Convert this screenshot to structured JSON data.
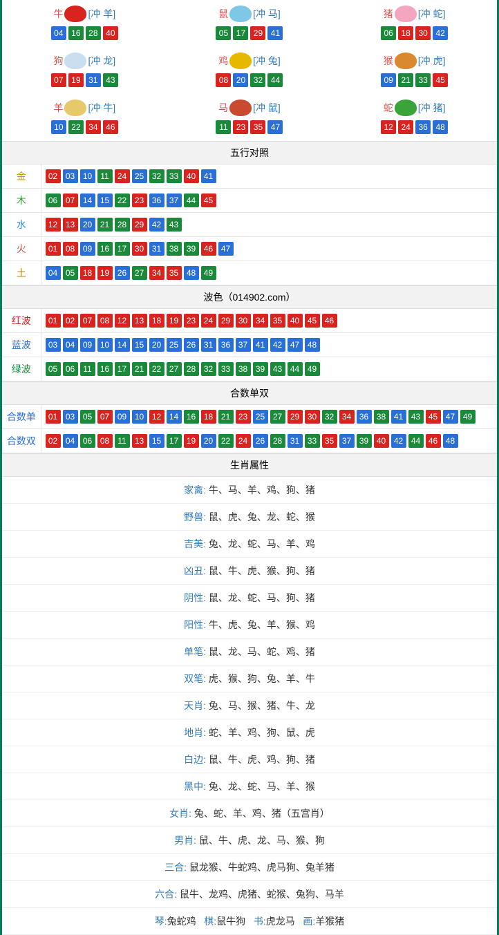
{
  "colors": {
    "red": "#d9231f",
    "blue": "#2a6fd6",
    "green": "#1a8a3a",
    "border": "#0a7a5a",
    "header_bg": "#f2f2f2"
  },
  "zodiac_grid": [
    {
      "name": "牛",
      "conflict": "[冲 羊]",
      "icon_color": "#d9231f",
      "balls": [
        {
          "n": "04",
          "c": "b"
        },
        {
          "n": "16",
          "c": "g"
        },
        {
          "n": "28",
          "c": "g"
        },
        {
          "n": "40",
          "c": "r"
        }
      ]
    },
    {
      "name": "鼠",
      "conflict": "[冲 马]",
      "icon_color": "#7fc7e6",
      "balls": [
        {
          "n": "05",
          "c": "g"
        },
        {
          "n": "17",
          "c": "g"
        },
        {
          "n": "29",
          "c": "r"
        },
        {
          "n": "41",
          "c": "b"
        }
      ]
    },
    {
      "name": "猪",
      "conflict": "[冲 蛇]",
      "icon_color": "#f4a6c0",
      "balls": [
        {
          "n": "06",
          "c": "g"
        },
        {
          "n": "18",
          "c": "r"
        },
        {
          "n": "30",
          "c": "r"
        },
        {
          "n": "42",
          "c": "b"
        }
      ]
    },
    {
      "name": "狗",
      "conflict": "[冲 龙]",
      "icon_color": "#c9dff0",
      "balls": [
        {
          "n": "07",
          "c": "r"
        },
        {
          "n": "19",
          "c": "r"
        },
        {
          "n": "31",
          "c": "b"
        },
        {
          "n": "43",
          "c": "g"
        }
      ]
    },
    {
      "name": "鸡",
      "conflict": "[冲 兔]",
      "icon_color": "#e6b800",
      "balls": [
        {
          "n": "08",
          "c": "r"
        },
        {
          "n": "20",
          "c": "b"
        },
        {
          "n": "32",
          "c": "g"
        },
        {
          "n": "44",
          "c": "g"
        }
      ]
    },
    {
      "name": "猴",
      "conflict": "[冲 虎]",
      "icon_color": "#d98a2e",
      "balls": [
        {
          "n": "09",
          "c": "b"
        },
        {
          "n": "21",
          "c": "g"
        },
        {
          "n": "33",
          "c": "g"
        },
        {
          "n": "45",
          "c": "r"
        }
      ]
    },
    {
      "name": "羊",
      "conflict": "[冲 牛]",
      "icon_color": "#e6c96b",
      "balls": [
        {
          "n": "10",
          "c": "b"
        },
        {
          "n": "22",
          "c": "g"
        },
        {
          "n": "34",
          "c": "r"
        },
        {
          "n": "46",
          "c": "r"
        }
      ]
    },
    {
      "name": "马",
      "conflict": "[冲 鼠]",
      "icon_color": "#c94a2e",
      "balls": [
        {
          "n": "11",
          "c": "g"
        },
        {
          "n": "23",
          "c": "r"
        },
        {
          "n": "35",
          "c": "r"
        },
        {
          "n": "47",
          "c": "b"
        }
      ]
    },
    {
      "name": "蛇",
      "conflict": "[冲 猪]",
      "icon_color": "#3aa33a",
      "balls": [
        {
          "n": "12",
          "c": "r"
        },
        {
          "n": "24",
          "c": "r"
        },
        {
          "n": "36",
          "c": "b"
        },
        {
          "n": "48",
          "c": "b"
        }
      ]
    }
  ],
  "wuxing": {
    "title": "五行对照",
    "rows": [
      {
        "label": "金",
        "cls": "c-gold",
        "balls": [
          {
            "n": "02",
            "c": "r"
          },
          {
            "n": "03",
            "c": "b"
          },
          {
            "n": "10",
            "c": "b"
          },
          {
            "n": "11",
            "c": "g"
          },
          {
            "n": "24",
            "c": "r"
          },
          {
            "n": "25",
            "c": "b"
          },
          {
            "n": "32",
            "c": "g"
          },
          {
            "n": "33",
            "c": "g"
          },
          {
            "n": "40",
            "c": "r"
          },
          {
            "n": "41",
            "c": "b"
          }
        ]
      },
      {
        "label": "木",
        "cls": "c-wood",
        "balls": [
          {
            "n": "06",
            "c": "g"
          },
          {
            "n": "07",
            "c": "r"
          },
          {
            "n": "14",
            "c": "b"
          },
          {
            "n": "15",
            "c": "b"
          },
          {
            "n": "22",
            "c": "g"
          },
          {
            "n": "23",
            "c": "r"
          },
          {
            "n": "36",
            "c": "b"
          },
          {
            "n": "37",
            "c": "b"
          },
          {
            "n": "44",
            "c": "g"
          },
          {
            "n": "45",
            "c": "r"
          }
        ]
      },
      {
        "label": "水",
        "cls": "c-water",
        "balls": [
          {
            "n": "12",
            "c": "r"
          },
          {
            "n": "13",
            "c": "r"
          },
          {
            "n": "20",
            "c": "b"
          },
          {
            "n": "21",
            "c": "g"
          },
          {
            "n": "28",
            "c": "g"
          },
          {
            "n": "29",
            "c": "r"
          },
          {
            "n": "42",
            "c": "b"
          },
          {
            "n": "43",
            "c": "g"
          }
        ]
      },
      {
        "label": "火",
        "cls": "c-fire",
        "balls": [
          {
            "n": "01",
            "c": "r"
          },
          {
            "n": "08",
            "c": "r"
          },
          {
            "n": "09",
            "c": "b"
          },
          {
            "n": "16",
            "c": "g"
          },
          {
            "n": "17",
            "c": "g"
          },
          {
            "n": "30",
            "c": "r"
          },
          {
            "n": "31",
            "c": "b"
          },
          {
            "n": "38",
            "c": "g"
          },
          {
            "n": "39",
            "c": "g"
          },
          {
            "n": "46",
            "c": "r"
          },
          {
            "n": "47",
            "c": "b"
          }
        ]
      },
      {
        "label": "土",
        "cls": "c-earth",
        "balls": [
          {
            "n": "04",
            "c": "b"
          },
          {
            "n": "05",
            "c": "g"
          },
          {
            "n": "18",
            "c": "r"
          },
          {
            "n": "19",
            "c": "r"
          },
          {
            "n": "26",
            "c": "b"
          },
          {
            "n": "27",
            "c": "g"
          },
          {
            "n": "34",
            "c": "r"
          },
          {
            "n": "35",
            "c": "r"
          },
          {
            "n": "48",
            "c": "b"
          },
          {
            "n": "49",
            "c": "g"
          }
        ]
      }
    ]
  },
  "bose": {
    "title": "波色（014902.com）",
    "rows": [
      {
        "label": "红波",
        "cls": "c-red",
        "balls": [
          {
            "n": "01",
            "c": "r"
          },
          {
            "n": "02",
            "c": "r"
          },
          {
            "n": "07",
            "c": "r"
          },
          {
            "n": "08",
            "c": "r"
          },
          {
            "n": "12",
            "c": "r"
          },
          {
            "n": "13",
            "c": "r"
          },
          {
            "n": "18",
            "c": "r"
          },
          {
            "n": "19",
            "c": "r"
          },
          {
            "n": "23",
            "c": "r"
          },
          {
            "n": "24",
            "c": "r"
          },
          {
            "n": "29",
            "c": "r"
          },
          {
            "n": "30",
            "c": "r"
          },
          {
            "n": "34",
            "c": "r"
          },
          {
            "n": "35",
            "c": "r"
          },
          {
            "n": "40",
            "c": "r"
          },
          {
            "n": "45",
            "c": "r"
          },
          {
            "n": "46",
            "c": "r"
          }
        ]
      },
      {
        "label": "蓝波",
        "cls": "c-blue",
        "balls": [
          {
            "n": "03",
            "c": "b"
          },
          {
            "n": "04",
            "c": "b"
          },
          {
            "n": "09",
            "c": "b"
          },
          {
            "n": "10",
            "c": "b"
          },
          {
            "n": "14",
            "c": "b"
          },
          {
            "n": "15",
            "c": "b"
          },
          {
            "n": "20",
            "c": "b"
          },
          {
            "n": "25",
            "c": "b"
          },
          {
            "n": "26",
            "c": "b"
          },
          {
            "n": "31",
            "c": "b"
          },
          {
            "n": "36",
            "c": "b"
          },
          {
            "n": "37",
            "c": "b"
          },
          {
            "n": "41",
            "c": "b"
          },
          {
            "n": "42",
            "c": "b"
          },
          {
            "n": "47",
            "c": "b"
          },
          {
            "n": "48",
            "c": "b"
          }
        ]
      },
      {
        "label": "绿波",
        "cls": "c-green",
        "balls": [
          {
            "n": "05",
            "c": "g"
          },
          {
            "n": "06",
            "c": "g"
          },
          {
            "n": "11",
            "c": "g"
          },
          {
            "n": "16",
            "c": "g"
          },
          {
            "n": "17",
            "c": "g"
          },
          {
            "n": "21",
            "c": "g"
          },
          {
            "n": "22",
            "c": "g"
          },
          {
            "n": "27",
            "c": "g"
          },
          {
            "n": "28",
            "c": "g"
          },
          {
            "n": "32",
            "c": "g"
          },
          {
            "n": "33",
            "c": "g"
          },
          {
            "n": "38",
            "c": "g"
          },
          {
            "n": "39",
            "c": "g"
          },
          {
            "n": "43",
            "c": "g"
          },
          {
            "n": "44",
            "c": "g"
          },
          {
            "n": "49",
            "c": "g"
          }
        ]
      }
    ]
  },
  "heshu": {
    "title": "合数单双",
    "rows": [
      {
        "label": "合数单",
        "cls": "c-blue",
        "balls": [
          {
            "n": "01",
            "c": "r"
          },
          {
            "n": "03",
            "c": "b"
          },
          {
            "n": "05",
            "c": "g"
          },
          {
            "n": "07",
            "c": "r"
          },
          {
            "n": "09",
            "c": "b"
          },
          {
            "n": "10",
            "c": "b"
          },
          {
            "n": "12",
            "c": "r"
          },
          {
            "n": "14",
            "c": "b"
          },
          {
            "n": "16",
            "c": "g"
          },
          {
            "n": "18",
            "c": "r"
          },
          {
            "n": "21",
            "c": "g"
          },
          {
            "n": "23",
            "c": "r"
          },
          {
            "n": "25",
            "c": "b"
          },
          {
            "n": "27",
            "c": "g"
          },
          {
            "n": "29",
            "c": "r"
          },
          {
            "n": "30",
            "c": "r"
          },
          {
            "n": "32",
            "c": "g"
          },
          {
            "n": "34",
            "c": "r"
          },
          {
            "n": "36",
            "c": "b"
          },
          {
            "n": "38",
            "c": "g"
          },
          {
            "n": "41",
            "c": "b"
          },
          {
            "n": "43",
            "c": "g"
          },
          {
            "n": "45",
            "c": "r"
          },
          {
            "n": "47",
            "c": "b"
          },
          {
            "n": "49",
            "c": "g"
          }
        ]
      },
      {
        "label": "合数双",
        "cls": "c-blue",
        "balls": [
          {
            "n": "02",
            "c": "r"
          },
          {
            "n": "04",
            "c": "b"
          },
          {
            "n": "06",
            "c": "g"
          },
          {
            "n": "08",
            "c": "r"
          },
          {
            "n": "11",
            "c": "g"
          },
          {
            "n": "13",
            "c": "r"
          },
          {
            "n": "15",
            "c": "b"
          },
          {
            "n": "17",
            "c": "g"
          },
          {
            "n": "19",
            "c": "r"
          },
          {
            "n": "20",
            "c": "b"
          },
          {
            "n": "22",
            "c": "g"
          },
          {
            "n": "24",
            "c": "r"
          },
          {
            "n": "26",
            "c": "b"
          },
          {
            "n": "28",
            "c": "g"
          },
          {
            "n": "31",
            "c": "b"
          },
          {
            "n": "33",
            "c": "g"
          },
          {
            "n": "35",
            "c": "r"
          },
          {
            "n": "37",
            "c": "b"
          },
          {
            "n": "39",
            "c": "g"
          },
          {
            "n": "40",
            "c": "r"
          },
          {
            "n": "42",
            "c": "b"
          },
          {
            "n": "44",
            "c": "g"
          },
          {
            "n": "46",
            "c": "r"
          },
          {
            "n": "48",
            "c": "b"
          }
        ]
      }
    ]
  },
  "attrs": {
    "title": "生肖属性",
    "rows": [
      {
        "label": "家禽:",
        "value": "牛、马、羊、鸡、狗、猪"
      },
      {
        "label": "野兽:",
        "value": "鼠、虎、兔、龙、蛇、猴"
      },
      {
        "label": "吉美:",
        "value": "兔、龙、蛇、马、羊、鸡"
      },
      {
        "label": "凶丑:",
        "value": "鼠、牛、虎、猴、狗、猪"
      },
      {
        "label": "阴性:",
        "value": "鼠、龙、蛇、马、狗、猪"
      },
      {
        "label": "阳性:",
        "value": "牛、虎、兔、羊、猴、鸡"
      },
      {
        "label": "单笔:",
        "value": "鼠、龙、马、蛇、鸡、猪"
      },
      {
        "label": "双笔:",
        "value": "虎、猴、狗、兔、羊、牛"
      },
      {
        "label": "天肖:",
        "value": "兔、马、猴、猪、牛、龙"
      },
      {
        "label": "地肖:",
        "value": "蛇、羊、鸡、狗、鼠、虎"
      },
      {
        "label": "白边:",
        "value": "鼠、牛、虎、鸡、狗、猪"
      },
      {
        "label": "黑中:",
        "value": "兔、龙、蛇、马、羊、猴"
      },
      {
        "label": "女肖:",
        "value": "兔、蛇、羊、鸡、猪（五宫肖）"
      },
      {
        "label": "男肖:",
        "value": "鼠、牛、虎、龙、马、猴、狗"
      },
      {
        "label": "三合:",
        "value": "鼠龙猴、牛蛇鸡、虎马狗、兔羊猪"
      },
      {
        "label": "六合:",
        "value": "鼠牛、龙鸡、虎猪、蛇猴、兔狗、马羊"
      }
    ],
    "footer": [
      {
        "label": "琴:",
        "value": "兔蛇鸡"
      },
      {
        "label": "棋:",
        "value": "鼠牛狗"
      },
      {
        "label": "书:",
        "value": "虎龙马"
      },
      {
        "label": "画:",
        "value": "羊猴猪"
      }
    ]
  }
}
